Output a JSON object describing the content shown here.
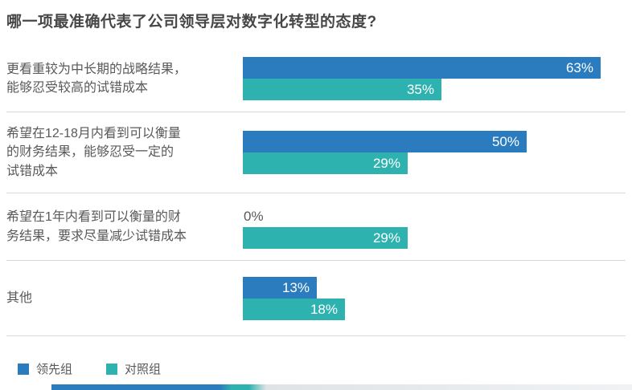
{
  "title": "哪一项最准确代表了公司领导层对数字化转型的态度?",
  "chart_data": {
    "type": "bar",
    "orientation": "horizontal",
    "title": "哪一项最准确代表了公司领导层对数字化转型的态度?",
    "categories": [
      "更看重较为中长期的战略结果，\n能够忍受较高的试错成本",
      "希望在12-18月内看到可以衡量\n的财务结果，能够忍受一定的\n试错成本",
      "希望在1年内看到可以衡量的财\n务结果，要求尽量减少试错成本",
      "其他"
    ],
    "series": [
      {
        "name": "领先组",
        "color": "#2a7cbe",
        "values": [
          63,
          50,
          0,
          13
        ]
      },
      {
        "name": "对照组",
        "color": "#2eb2b0",
        "values": [
          35,
          29,
          29,
          18
        ]
      }
    ],
    "value_suffix": "%",
    "data_labels": [
      "63%",
      "35%",
      "50%",
      "29%",
      "0%",
      "29%",
      "13%",
      "18%"
    ],
    "xlim": [
      0,
      68.5
    ],
    "grid": false,
    "legend_position": "bottom-left",
    "row_dividers": true,
    "label_color": "#595959",
    "divider_color": "#d9d9d9",
    "zero_label_color": "#595959"
  }
}
